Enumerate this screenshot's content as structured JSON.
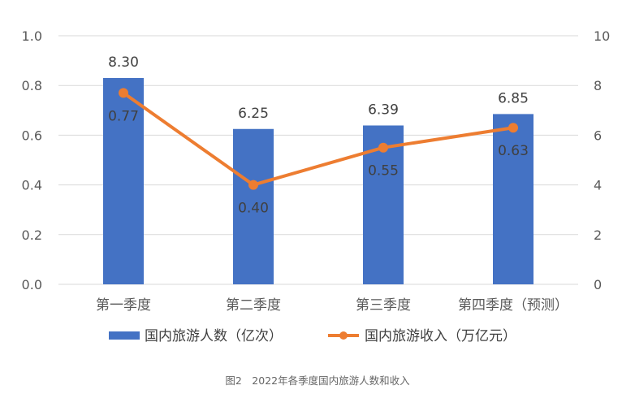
{
  "colors": {
    "bar": "#4472C4",
    "line": "#ED7D31",
    "grid": "#D9D9D9"
  },
  "chart_data": {
    "type": "bar+line",
    "categories": [
      "第一季度",
      "第二季度",
      "第三季度",
      "第四季度（预测）"
    ],
    "series": [
      {
        "name": "国内旅游人数（亿次）",
        "type": "bar",
        "axis": "right",
        "values": [
          8.3,
          6.25,
          6.39,
          6.85
        ],
        "labels": [
          "8.30",
          "6.25",
          "6.39",
          "6.85"
        ]
      },
      {
        "name": "国内旅游收入（万亿元）",
        "type": "line",
        "axis": "left",
        "values": [
          0.77,
          0.4,
          0.55,
          0.63
        ],
        "labels": [
          "0.77",
          "0.40",
          "0.55",
          "0.63"
        ]
      }
    ],
    "y_left": {
      "min": 0,
      "max": 1.0,
      "ticks": [
        "0.0",
        "0.2",
        "0.4",
        "0.6",
        "0.8",
        "1.0"
      ]
    },
    "y_right": {
      "min": 0,
      "max": 10,
      "ticks": [
        "0",
        "2",
        "4",
        "6",
        "8",
        "10"
      ]
    },
    "grid": true,
    "legend_position": "bottom",
    "caption": "图2　2022年各季度国内旅游人数和收入"
  }
}
